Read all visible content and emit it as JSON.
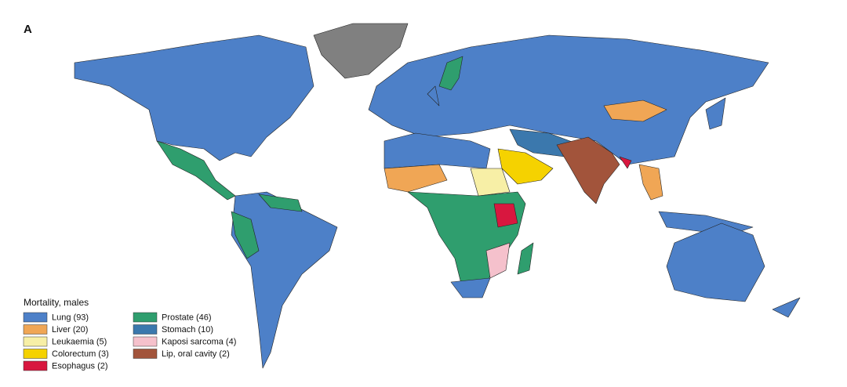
{
  "panel_label": "A",
  "legend": {
    "title": "Mortality, males",
    "items": [
      {
        "label": "Lung (93)",
        "color": "#4d80c8"
      },
      {
        "label": "Liver (20)",
        "color": "#f0a655"
      },
      {
        "label": "Leukaemia (5)",
        "color": "#f7efa6"
      },
      {
        "label": "Colorectum (3)",
        "color": "#f5d200"
      },
      {
        "label": "Esophagus (2)",
        "color": "#d8173f"
      },
      {
        "label": "Prostate (46)",
        "color": "#2f9e6e"
      },
      {
        "label": "Stomach (10)",
        "color": "#3b78ad"
      },
      {
        "label": "Kaposi sarcoma (4)",
        "color": "#f5c1cc"
      },
      {
        "label": "Lip, oral cavity (2)",
        "color": "#a2543b"
      }
    ]
  }
}
